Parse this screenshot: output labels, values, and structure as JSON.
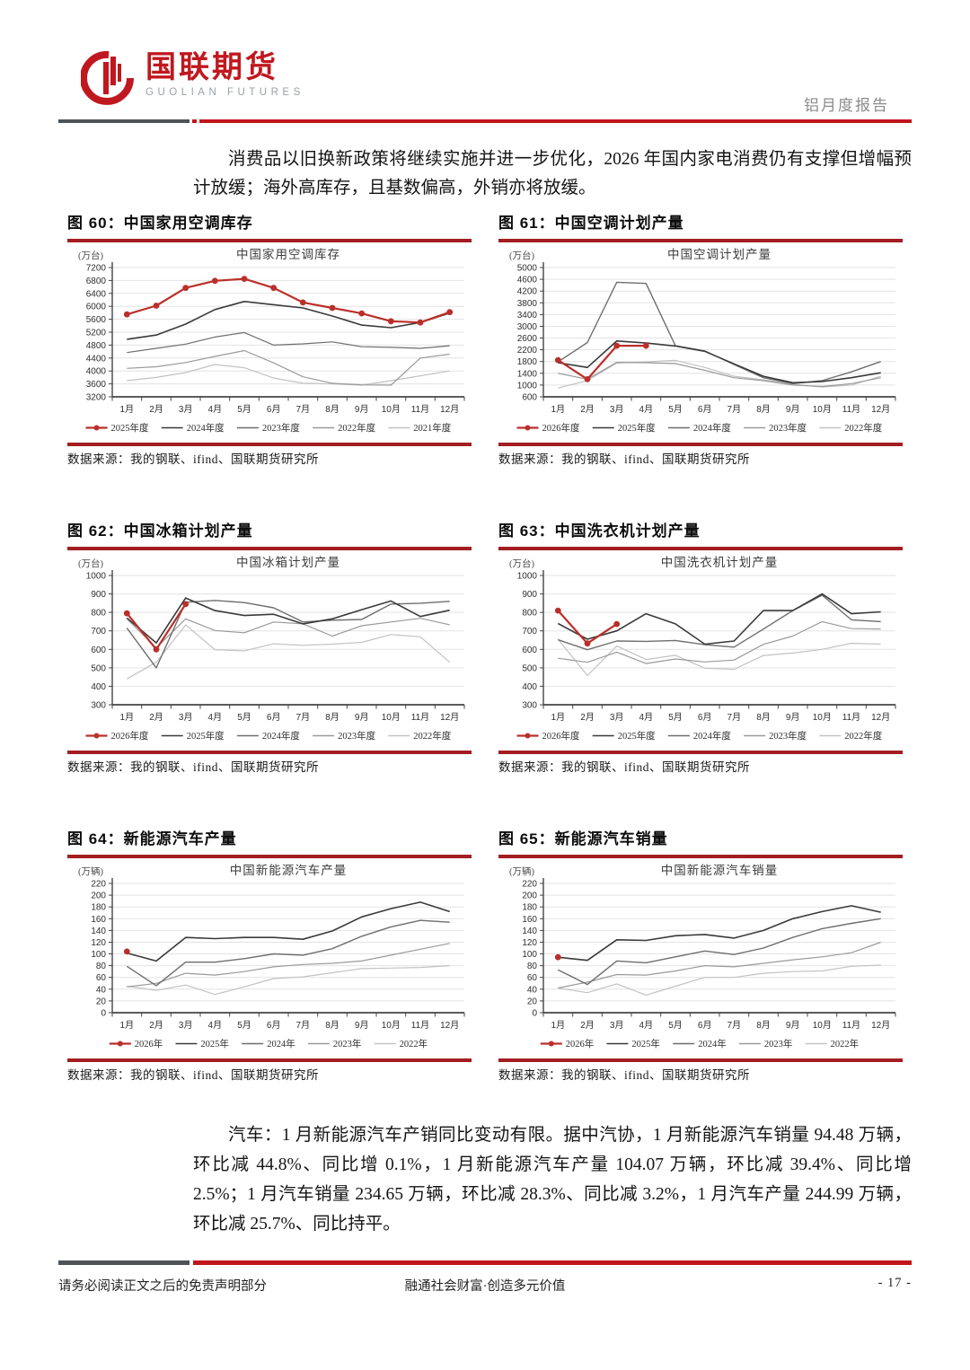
{
  "header": {
    "logo_cn": "国联期货",
    "logo_en": "GUOLIAN FUTURES",
    "report_tag": "铝月度报告"
  },
  "intro_paragraph": "消费品以旧换新政策将继续实施并进一步优化，2026 年国内家电消费仍有支撑但增幅预计放缓；海外高库存，且基数偏高，外销亦将放缓。",
  "auto_paragraph": "汽车：1 月新能源汽车产销同比变动有限。据中汽协，1 月新能源汽车销量 94.48 万辆，环比减 44.8%、同比增 0.1%，1 月新能源汽车产量 104.07 万辆，环比减 39.4%、同比增 2.5%；1 月汽车销量 234.65 万辆，环比减 28.3%、同比减 3.2%，1 月汽车产量 244.99 万辆，环比减 25.7%、同比持平。",
  "source_note": "数据来源：我的钢联、ifind、国联期货研究所",
  "footer": {
    "disclaimer": "请务必阅读正文之后的免责声明部分",
    "slogan": "融通社会财富·创造多元价值",
    "page_number": "- 17 -"
  },
  "colors": {
    "accent_red": "#a31d21",
    "bar_red": "#c1151c",
    "bar_dark": "#4d5356",
    "series_red": "#bb2f2a",
    "grid": "#e3e3e3"
  },
  "chart_data": [
    {
      "type": "line",
      "figure_label": "图 60：中国家用空调库存",
      "title": "中国家用空调库存",
      "unit": "(万台)",
      "x": [
        "1月",
        "2月",
        "3月",
        "4月",
        "5月",
        "6月",
        "7月",
        "8月",
        "9月",
        "10月",
        "11月",
        "12月"
      ],
      "ylim": [
        3200,
        7200
      ],
      "ystep": 400,
      "grid": true,
      "legend_position": "bottom",
      "series": [
        {
          "name": "2025年度",
          "color": "#bb2f2a",
          "marker": true,
          "width": 2.2,
          "values": [
            5750,
            6020,
            6570,
            6790,
            6850,
            6570,
            6120,
            5950,
            5780,
            5540,
            5500,
            5820
          ]
        },
        {
          "name": "2024年度",
          "color": "#3a3a3a",
          "marker": false,
          "width": 1.6,
          "values": [
            4980,
            5110,
            5450,
            5900,
            6150,
            6050,
            5950,
            5700,
            5420,
            5340,
            5500,
            5790
          ]
        },
        {
          "name": "2023年度",
          "color": "#6e6e6e",
          "marker": false,
          "width": 1.2,
          "values": [
            4570,
            4700,
            4830,
            5050,
            5190,
            4800,
            4840,
            4900,
            4750,
            4730,
            4700,
            4780
          ]
        },
        {
          "name": "2022年度",
          "color": "#9a9a9a",
          "marker": false,
          "width": 1.2,
          "values": [
            4080,
            4130,
            4260,
            4450,
            4630,
            4250,
            3820,
            3620,
            3570,
            3560,
            4400,
            4520
          ]
        },
        {
          "name": "2021年度",
          "color": "#c2c2c2",
          "marker": false,
          "width": 1.2,
          "values": [
            3700,
            3800,
            3950,
            4200,
            4100,
            3780,
            3620,
            3600,
            3560,
            3700,
            3850,
            4000
          ]
        }
      ]
    },
    {
      "type": "line",
      "figure_label": "图 61：中国空调计划产量",
      "title": "中国空调计划产量",
      "unit": "(万台)",
      "x": [
        "1月",
        "2月",
        "3月",
        "4月",
        "5月",
        "6月",
        "7月",
        "8月",
        "9月",
        "10月",
        "11月",
        "12月"
      ],
      "ylim": [
        600,
        5000
      ],
      "ystep": 400,
      "grid": true,
      "legend_position": "bottom",
      "series": [
        {
          "name": "2026年度",
          "color": "#bb2f2a",
          "marker": true,
          "width": 2.2,
          "values": [
            1850,
            1200,
            2340,
            2340,
            null,
            null,
            null,
            null,
            null,
            null,
            null,
            null
          ]
        },
        {
          "name": "2025年度",
          "color": "#3a3a3a",
          "marker": false,
          "width": 1.6,
          "values": [
            1760,
            1600,
            2500,
            2430,
            2330,
            2150,
            1720,
            1300,
            1080,
            1120,
            1250,
            1420
          ]
        },
        {
          "name": "2024年度",
          "color": "#6e6e6e",
          "marker": false,
          "width": 1.4,
          "values": [
            1790,
            2450,
            4500,
            4460,
            2340,
            2160,
            1700,
            1250,
            1050,
            1150,
            1450,
            1800
          ]
        },
        {
          "name": "2023年度",
          "color": "#9a9a9a",
          "marker": false,
          "width": 1.2,
          "values": [
            1400,
            1200,
            1770,
            1760,
            1730,
            1500,
            1250,
            1150,
            1000,
            950,
            1050,
            1250
          ]
        },
        {
          "name": "2022年度",
          "color": "#c2c2c2",
          "marker": false,
          "width": 1.2,
          "values": [
            900,
            1150,
            1750,
            1790,
            1840,
            1600,
            1300,
            1180,
            1030,
            930,
            1000,
            1300
          ]
        }
      ]
    },
    {
      "type": "line",
      "figure_label": "图 62：中国冰箱计划产量",
      "title": "中国冰箱计划产量",
      "unit": "(万台)",
      "x": [
        "1月",
        "2月",
        "3月",
        "4月",
        "5月",
        "6月",
        "7月",
        "8月",
        "9月",
        "10月",
        "11月",
        "12月"
      ],
      "ylim": [
        300,
        1000
      ],
      "ystep": 100,
      "grid": true,
      "legend_position": "bottom",
      "series": [
        {
          "name": "2026年度",
          "color": "#bb2f2a",
          "marker": true,
          "width": 2.2,
          "values": [
            795,
            600,
            845,
            null,
            null,
            null,
            null,
            null,
            null,
            null,
            null,
            null
          ]
        },
        {
          "name": "2025年度",
          "color": "#3a3a3a",
          "marker": false,
          "width": 1.6,
          "values": [
            770,
            635,
            878,
            810,
            783,
            790,
            738,
            765,
            815,
            862,
            778,
            812
          ]
        },
        {
          "name": "2024年度",
          "color": "#6e6e6e",
          "marker": false,
          "width": 1.4,
          "values": [
            715,
            500,
            855,
            865,
            853,
            825,
            748,
            758,
            762,
            845,
            850,
            860
          ]
        },
        {
          "name": "2023年度",
          "color": "#9a9a9a",
          "marker": false,
          "width": 1.2,
          "values": [
            765,
            608,
            765,
            702,
            690,
            748,
            738,
            672,
            728,
            748,
            768,
            733
          ]
        },
        {
          "name": "2022年度",
          "color": "#c2c2c2",
          "marker": false,
          "width": 1.2,
          "values": [
            440,
            530,
            732,
            598,
            592,
            630,
            622,
            628,
            638,
            680,
            668,
            530
          ]
        }
      ]
    },
    {
      "type": "line",
      "figure_label": "图 63：中国洗衣机计划产量",
      "title": "中国洗衣机计划产量",
      "unit": "(万台)",
      "x": [
        "1月",
        "2月",
        "3月",
        "4月",
        "5月",
        "6月",
        "7月",
        "8月",
        "9月",
        "10月",
        "11月",
        "12月"
      ],
      "ylim": [
        300,
        1000
      ],
      "ystep": 100,
      "grid": true,
      "legend_position": "bottom",
      "series": [
        {
          "name": "2026年度",
          "color": "#bb2f2a",
          "marker": true,
          "width": 2.2,
          "values": [
            810,
            632,
            737,
            null,
            null,
            null,
            null,
            null,
            null,
            null,
            null,
            null
          ]
        },
        {
          "name": "2025年度",
          "color": "#3a3a3a",
          "marker": false,
          "width": 1.6,
          "values": [
            740,
            655,
            700,
            793,
            738,
            628,
            645,
            810,
            810,
            900,
            793,
            803
          ]
        },
        {
          "name": "2024年度",
          "color": "#6e6e6e",
          "marker": false,
          "width": 1.4,
          "values": [
            652,
            598,
            645,
            643,
            648,
            625,
            612,
            710,
            810,
            893,
            760,
            750
          ]
        },
        {
          "name": "2023年度",
          "color": "#9a9a9a",
          "marker": false,
          "width": 1.2,
          "values": [
            552,
            530,
            585,
            523,
            548,
            532,
            542,
            627,
            672,
            750,
            712,
            710
          ]
        },
        {
          "name": "2022年度",
          "color": "#c2c2c2",
          "marker": false,
          "width": 1.2,
          "values": [
            655,
            458,
            618,
            545,
            568,
            498,
            492,
            567,
            580,
            600,
            633,
            628
          ]
        }
      ]
    },
    {
      "type": "line",
      "figure_label": "图 64：新能源汽车产量",
      "title": "中国新能源汽车产量",
      "unit": "(万辆)",
      "x": [
        "1月",
        "2月",
        "3月",
        "4月",
        "5月",
        "6月",
        "7月",
        "8月",
        "9月",
        "10月",
        "11月",
        "12月"
      ],
      "ylim": [
        0,
        220
      ],
      "ystep": 20,
      "grid": true,
      "legend_position": "bottom",
      "series": [
        {
          "name": "2026年",
          "color": "#bb2f2a",
          "marker": true,
          "width": 2.2,
          "values": [
            104.07,
            null,
            null,
            null,
            null,
            null,
            null,
            null,
            null,
            null,
            null,
            null
          ]
        },
        {
          "name": "2025年",
          "color": "#3a3a3a",
          "marker": false,
          "width": 1.6,
          "values": [
            101.5,
            88,
            128,
            126,
            128,
            128,
            125,
            139,
            163,
            177,
            188,
            172
          ]
        },
        {
          "name": "2024年",
          "color": "#6e6e6e",
          "marker": false,
          "width": 1.4,
          "values": [
            79,
            46,
            86,
            86,
            92,
            100,
            98,
            109,
            130,
            146,
            157,
            154
          ]
        },
        {
          "name": "2023年",
          "color": "#9a9a9a",
          "marker": false,
          "width": 1.2,
          "values": [
            44,
            50,
            67,
            64,
            70,
            78,
            82,
            84,
            88,
            98,
            108,
            118
          ]
        },
        {
          "name": "2022年",
          "color": "#c2c2c2",
          "marker": false,
          "width": 1.2,
          "values": [
            45,
            38,
            47,
            31,
            44,
            58,
            61,
            68,
            75,
            76,
            77,
            80
          ]
        }
      ]
    },
    {
      "type": "line",
      "figure_label": "图 65：新能源汽车销量",
      "title": "中国新能源汽车销量",
      "unit": "(万辆)",
      "x": [
        "1月",
        "2月",
        "3月",
        "4月",
        "5月",
        "6月",
        "7月",
        "8月",
        "9月",
        "10月",
        "11月",
        "12月"
      ],
      "ylim": [
        0,
        220
      ],
      "ystep": 20,
      "grid": true,
      "legend_position": "bottom",
      "series": [
        {
          "name": "2026年",
          "color": "#bb2f2a",
          "marker": true,
          "width": 2.2,
          "values": [
            94.48,
            null,
            null,
            null,
            null,
            null,
            null,
            null,
            null,
            null,
            null,
            null
          ]
        },
        {
          "name": "2025年",
          "color": "#3a3a3a",
          "marker": false,
          "width": 1.6,
          "values": [
            94.4,
            89,
            124,
            123,
            131,
            133,
            127,
            140,
            160,
            172,
            182,
            171
          ]
        },
        {
          "name": "2024年",
          "color": "#6e6e6e",
          "marker": false,
          "width": 1.4,
          "values": [
            73,
            48,
            88,
            85,
            95,
            105,
            99,
            110,
            128,
            143,
            152,
            160
          ]
        },
        {
          "name": "2023年",
          "color": "#9a9a9a",
          "marker": false,
          "width": 1.2,
          "values": [
            42,
            52,
            65,
            64,
            71,
            80,
            78,
            84,
            90,
            95,
            102,
            120
          ]
        },
        {
          "name": "2022年",
          "color": "#c2c2c2",
          "marker": false,
          "width": 1.2,
          "values": [
            42,
            34,
            49,
            30,
            45,
            60,
            60,
            67,
            70,
            71,
            79,
            81
          ]
        }
      ]
    }
  ]
}
